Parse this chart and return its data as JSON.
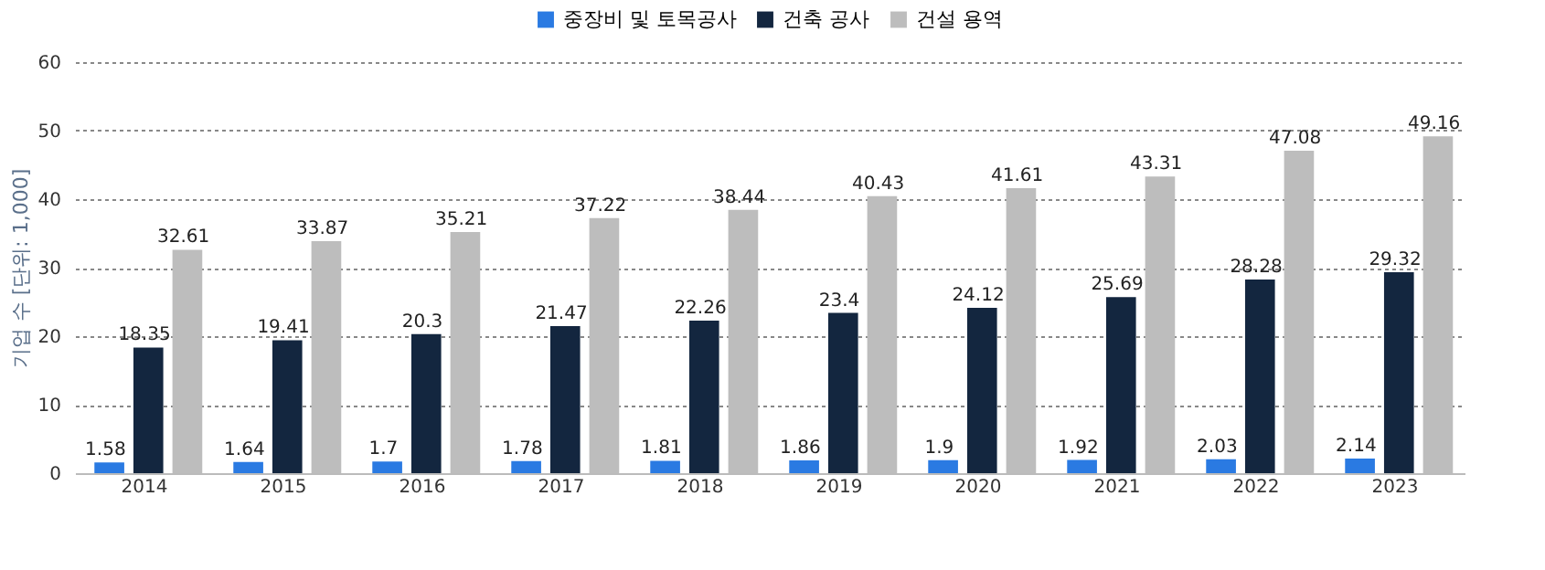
{
  "chart_data": {
    "type": "bar",
    "ylabel": "기업 수 [단위: 1,000]",
    "categories": [
      "2014",
      "2015",
      "2016",
      "2017",
      "2018",
      "2019",
      "2020",
      "2021",
      "2022",
      "2023"
    ],
    "series": [
      {
        "name": "중장비 및 토목공사",
        "color": "#2a7ae2",
        "values": [
          1.58,
          1.64,
          1.7,
          1.78,
          1.81,
          1.86,
          1.9,
          1.92,
          2.03,
          2.14
        ]
      },
      {
        "name": "건축 공사",
        "color": "#13263f",
        "values": [
          18.35,
          19.41,
          20.3,
          21.47,
          22.26,
          23.4,
          24.12,
          25.69,
          28.28,
          29.32
        ]
      },
      {
        "name": "건설 용역",
        "color": "#bdbdbd",
        "values": [
          32.61,
          33.87,
          35.21,
          37.22,
          38.44,
          40.43,
          41.61,
          43.31,
          47.08,
          49.16
        ]
      }
    ],
    "ylim": [
      0,
      60
    ],
    "yticks": [
      0,
      10,
      20,
      30,
      40,
      50,
      60
    ],
    "grid": "y",
    "legend": "top",
    "data_labels": true
  }
}
